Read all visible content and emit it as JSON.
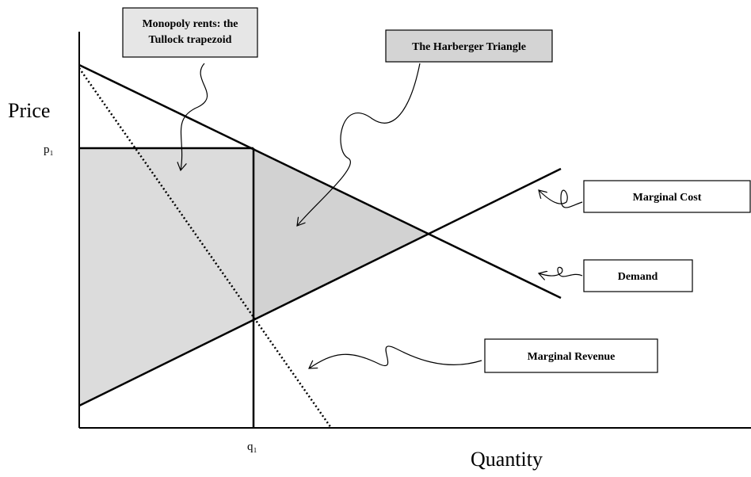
{
  "axes": {
    "y_label": "Price",
    "x_label": "Quantity",
    "p_label": "p₁",
    "q_label": "q₁"
  },
  "callouts": {
    "tullock": [
      "Monopoly rents: the",
      "Tullock trapezoid"
    ],
    "harberger": "The Harberger Triangle",
    "marginal_cost": "Marginal Cost",
    "demand": "Demand",
    "marginal_revenue": "Marginal Revenue"
  }
}
